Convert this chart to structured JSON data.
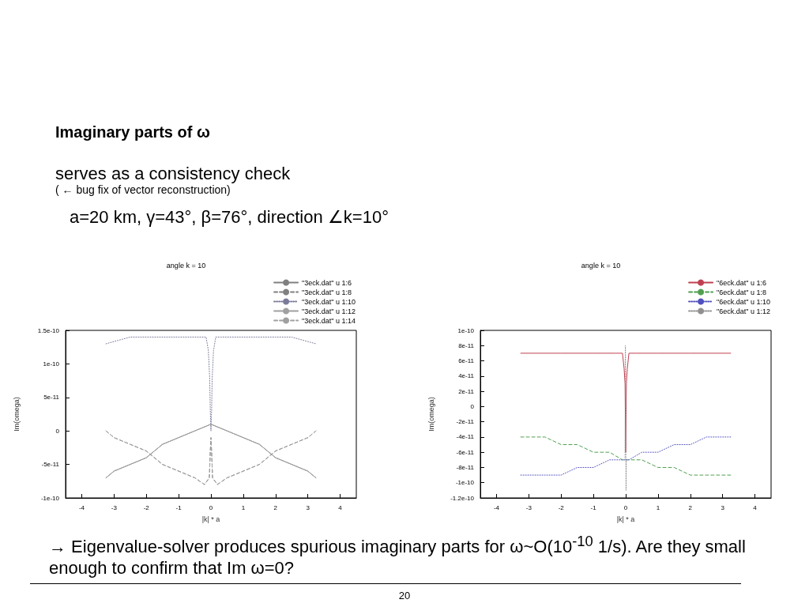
{
  "chart_data": [
    {
      "type": "line",
      "title": "angle k = 10",
      "xlabel": "|k| * a",
      "ylabel": "Im(omega)",
      "annotations": [
        "Imaginary parts of ω",
        "serves as a consistency check",
        "( ← bug fix of vector reconstruction)",
        "a=20 km, γ=43°, β=76°, direction ∠k=10°"
      ],
      "xlim": [
        -4.5,
        4.5
      ],
      "xticks": [
        -4,
        -3,
        -2,
        -1,
        0,
        1,
        2,
        3,
        4
      ],
      "ylim": [
        -1e-10,
        1.5e-10
      ],
      "yticks": [
        {
          "value": -1e-10,
          "label": "-1e-10"
        },
        {
          "value": -5e-11,
          "label": "-5e-11"
        },
        {
          "value": 0,
          "label": "0"
        },
        {
          "value": 5e-11,
          "label": "5e-11"
        },
        {
          "value": 1e-10,
          "label": "1e-10"
        },
        {
          "value": 1.5e-10,
          "label": "1.5e-10"
        }
      ],
      "grid": false,
      "legend": "top right",
      "marker": "none",
      "series": [
        {
          "name": "\"3eck.dat\" u 1:6",
          "color": "#808080",
          "line_style": "solid",
          "x": [
            -3.25,
            -3,
            -2.5,
            -2,
            -1.5,
            -1,
            -0.5,
            0,
            0.5,
            1,
            1.5,
            2,
            2.5,
            3,
            3.25
          ],
          "values": [
            -7e-11,
            -6e-11,
            -5e-11,
            -4e-11,
            -2e-11,
            -1e-11,
            0,
            1e-11,
            0,
            -1e-11,
            -2e-11,
            -4e-11,
            -5e-11,
            -6e-11,
            -7e-11
          ]
        },
        {
          "name": "\"3eck.dat\" u 1:8",
          "color": "#808080",
          "line_style": "dashed",
          "x": [
            -3.25,
            -3,
            -2.5,
            -2,
            -1.5,
            -1,
            -0.5,
            -0.2,
            -0.05,
            -0.02,
            0,
            0.02,
            0.05,
            0.2,
            0.5,
            1,
            1.5,
            2,
            2.5,
            3,
            3.25
          ],
          "values": [
            0,
            -1e-11,
            -2e-11,
            -3e-11,
            -5e-11,
            -6e-11,
            -7e-11,
            -8e-11,
            -7e-11,
            -3e-11,
            -1e-11,
            -3e-11,
            -7e-11,
            -8e-11,
            -7e-11,
            -6e-11,
            -5e-11,
            -3e-11,
            -2e-11,
            -1e-11,
            0
          ]
        },
        {
          "name": "\"3eck.dat\" u 1:10",
          "color": "#7a7a9a",
          "line_style": "dotted",
          "x": [
            -3.25,
            -2.5,
            -2,
            -1,
            -0.3,
            -0.15,
            -0.08,
            -0.04,
            -0.02,
            0,
            0.02,
            0.04,
            0.08,
            0.15,
            0.3,
            1,
            2,
            2.5,
            3.25
          ],
          "values": [
            1.3e-10,
            1.4e-10,
            1.4e-10,
            1.4e-10,
            1.4e-10,
            1.4e-10,
            1.2e-10,
            8e-11,
            3e-11,
            0,
            3e-11,
            8e-11,
            1.2e-10,
            1.4e-10,
            1.4e-10,
            1.4e-10,
            1.4e-10,
            1.4e-10,
            1.3e-10
          ]
        },
        {
          "name": "\"3eck.dat\" u 1:12",
          "color": "#a0a0a0",
          "line_style": "solid",
          "x": [
            -3.25,
            -3,
            -2.5,
            -2,
            -1.5,
            -1,
            -0.5,
            0,
            0.5,
            1,
            1.5,
            2,
            2.5,
            3,
            3.25
          ],
          "values": [
            -7e-11,
            -6e-11,
            -5e-11,
            -4e-11,
            -2e-11,
            -1e-11,
            0,
            1e-11,
            0,
            -1e-11,
            -2e-11,
            -4e-11,
            -5e-11,
            -6e-11,
            -7e-11
          ]
        },
        {
          "name": "\"3eck.dat\" u 1:14",
          "color": "#a0a0a0",
          "line_style": "dashed",
          "x": [
            -3.25,
            -3,
            -2.5,
            -2,
            -1.5,
            -1,
            -0.5,
            -0.2,
            -0.05,
            -0.02,
            0,
            0.02,
            0.05,
            0.2,
            0.5,
            1,
            1.5,
            2,
            2.5,
            3,
            3.25
          ],
          "values": [
            0,
            -1e-11,
            -2e-11,
            -3e-11,
            -5e-11,
            -6e-11,
            -7e-11,
            -8e-11,
            -7e-11,
            -3e-11,
            -1e-11,
            -3e-11,
            -7e-11,
            -8e-11,
            -7e-11,
            -6e-11,
            -5e-11,
            -3e-11,
            -2e-11,
            -1e-11,
            0
          ]
        }
      ]
    },
    {
      "type": "line",
      "title": "angle k = 10",
      "xlabel": "|k| * a",
      "ylabel": "Im(omega)",
      "annotations": [
        "→ Eigenvalue-solver produces spurious imaginary parts for ω~O(10$^{-10}$ 1/s).  Are they small enough to confirm that Im ω=0?",
        "20"
      ],
      "xlim": [
        -4.5,
        4.5
      ],
      "xticks": [
        -4,
        -3,
        -2,
        -1,
        0,
        1,
        2,
        3,
        4
      ],
      "ylim": [
        -1.2e-10,
        1e-10
      ],
      "yticks": [
        {
          "value": -1.2e-10,
          "label": "-1.2e-10"
        },
        {
          "value": -1e-10,
          "label": "-1e-10"
        },
        {
          "value": -8e-11,
          "label": "-8e-11"
        },
        {
          "value": -6e-11,
          "label": "-6e-11"
        },
        {
          "value": -4e-11,
          "label": "-4e-11"
        },
        {
          "value": -2e-11,
          "label": "-2e-11"
        },
        {
          "value": 0,
          "label": "0"
        },
        {
          "value": 2e-11,
          "label": "2e-11"
        },
        {
          "value": 4e-11,
          "label": "4e-11"
        },
        {
          "value": 6e-11,
          "label": "6e-11"
        },
        {
          "value": 8e-11,
          "label": "8e-11"
        },
        {
          "value": 1e-10,
          "label": "1e-10"
        }
      ],
      "grid": false,
      "legend": "top right",
      "marker": "none",
      "series": [
        {
          "name": "\"6eck.dat\" u 1:6",
          "color": "#c04050",
          "line_style": "solid",
          "x": [
            -3.25,
            -2,
            -1,
            -0.3,
            -0.1,
            -0.05,
            -0.02,
            0,
            0.02,
            0.05,
            0.1,
            0.3,
            1,
            2,
            3.25
          ],
          "values": [
            7e-11,
            7e-11,
            7e-11,
            7e-11,
            7e-11,
            5e-11,
            3e-11,
            -6e-11,
            3e-11,
            5e-11,
            7e-11,
            7e-11,
            7e-11,
            7e-11,
            7e-11
          ]
        },
        {
          "name": "\"6eck.dat\" u 1:8",
          "color": "#50a050",
          "line_style": "dashed",
          "x": [
            -3.25,
            -3,
            -2.5,
            -2,
            -1.5,
            -1,
            -0.5,
            -0.1,
            0,
            0.1,
            0.5,
            1,
            1.5,
            2,
            2.5,
            2.7,
            3.25
          ],
          "values": [
            -4e-11,
            -4e-11,
            -4e-11,
            -5e-11,
            -5e-11,
            -6e-11,
            -6e-11,
            -7e-11,
            -7e-11,
            -7e-11,
            -7e-11,
            -8e-11,
            -8e-11,
            -9e-11,
            -9e-11,
            -9e-11,
            -9e-11
          ]
        },
        {
          "name": "\"6eck.dat\" u 1:10",
          "color": "#5050c0",
          "line_style": "dotted",
          "x": [
            -3.25,
            -2.7,
            -2.5,
            -2,
            -1.5,
            -1,
            -0.5,
            -0.1,
            0,
            0.1,
            0.5,
            1,
            1.5,
            2,
            2.5,
            3,
            3.25
          ],
          "values": [
            -9e-11,
            -9e-11,
            -9e-11,
            -9e-11,
            -8e-11,
            -8e-11,
            -7e-11,
            -7e-11,
            -7e-11,
            -7e-11,
            -6e-11,
            -6e-11,
            -5e-11,
            -5e-11,
            -4e-11,
            -4e-11,
            -4e-11
          ]
        },
        {
          "name": "\"6eck.dat\" u 1:12",
          "color": "#909090",
          "line_style": "dotted",
          "x": [
            -0.02,
            -0.01,
            0.01,
            0.02
          ],
          "values": [
            -7e-11,
            8e-11,
            -1.1e-10,
            -7e-11
          ]
        }
      ]
    }
  ]
}
